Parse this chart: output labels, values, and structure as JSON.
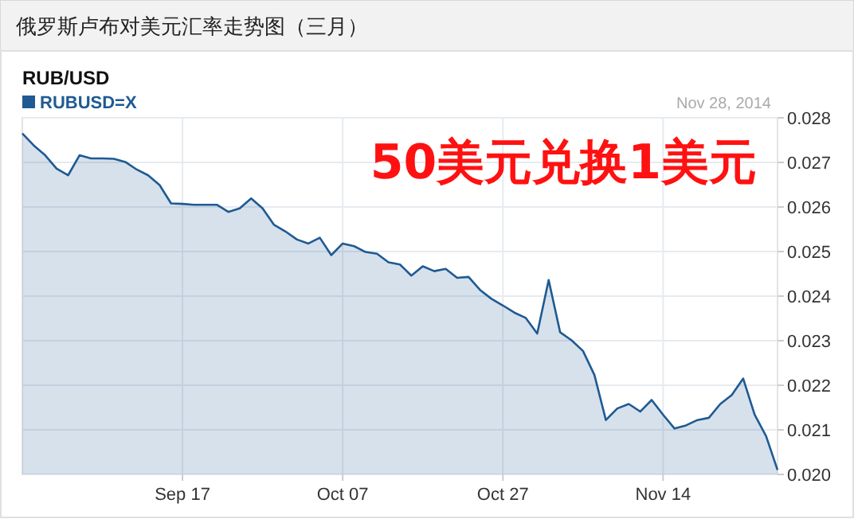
{
  "chart_data": {
    "type": "area",
    "title": "俄罗斯卢布对美元汇率走势图（三月）",
    "subtitle": "RUB/USD",
    "annotations": [
      "50美元兑换1美元",
      "Nov 28, 2014"
    ],
    "categories": [
      null,
      null,
      null,
      null,
      null,
      null,
      null,
      null,
      null,
      null,
      null,
      null,
      null,
      null,
      "Sep 17",
      null,
      null,
      null,
      null,
      null,
      null,
      null,
      null,
      null,
      null,
      null,
      null,
      null,
      "Oct 07",
      null,
      null,
      null,
      null,
      null,
      null,
      null,
      null,
      null,
      null,
      null,
      null,
      null,
      "Oct 27",
      null,
      null,
      null,
      null,
      null,
      null,
      null,
      null,
      null,
      null,
      null,
      null,
      null,
      "Nov 14",
      null,
      null,
      null,
      null,
      null,
      null,
      null,
      null,
      null,
      null
    ],
    "series": [
      {
        "name": "RUBUSD=X",
        "color": "#1f5a93",
        "values": [
          0.02765,
          0.02738,
          0.02716,
          0.02686,
          0.02671,
          0.02716,
          0.02709,
          0.02709,
          0.02708,
          0.02701,
          0.02684,
          0.02671,
          0.02649,
          0.02608,
          0.02607,
          0.02605,
          0.02605,
          0.02605,
          0.02589,
          0.02597,
          0.02619,
          0.02597,
          0.0256,
          0.02545,
          0.02527,
          0.02518,
          0.02531,
          0.02492,
          0.02518,
          0.02512,
          0.02499,
          0.02495,
          0.02476,
          0.02471,
          0.02446,
          0.02467,
          0.02456,
          0.02461,
          0.02441,
          0.02443,
          0.02414,
          0.02394,
          0.02379,
          0.02363,
          0.02351,
          0.02316,
          0.02436,
          0.02319,
          0.02301,
          0.02277,
          0.02223,
          0.02122,
          0.02148,
          0.02158,
          0.02141,
          0.02167,
          0.02134,
          0.02103,
          0.0211,
          0.02122,
          0.02127,
          0.02158,
          0.02178,
          0.02215,
          0.02134,
          0.02086,
          0.0201
        ]
      }
    ],
    "ylim": [
      0.02,
      0.028
    ],
    "yticks": [
      {
        "value": 0.02,
        "label": "0.020"
      },
      {
        "value": 0.021,
        "label": "0.021"
      },
      {
        "value": 0.022,
        "label": "0.022"
      },
      {
        "value": 0.023,
        "label": "0.023"
      },
      {
        "value": 0.024,
        "label": "0.024"
      },
      {
        "value": 0.025,
        "label": "0.025"
      },
      {
        "value": 0.026,
        "label": "0.026"
      },
      {
        "value": 0.027,
        "label": "0.027"
      },
      {
        "value": 0.028,
        "label": "0.028"
      }
    ],
    "grid": true,
    "legend": "top left"
  }
}
